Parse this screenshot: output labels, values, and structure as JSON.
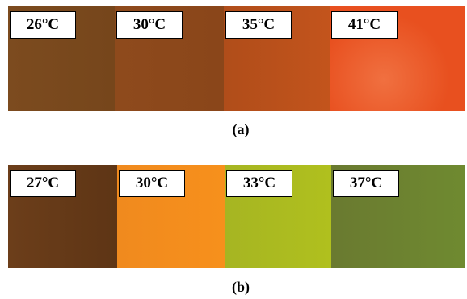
{
  "figure_a": {
    "labels": [
      "26°C",
      "30°C",
      "35°C",
      "41°C"
    ],
    "caption": "(a)"
  },
  "figure_b": {
    "labels": [
      "27°C",
      "30°C",
      "33°C",
      "37°C"
    ],
    "caption": "(b)"
  }
}
